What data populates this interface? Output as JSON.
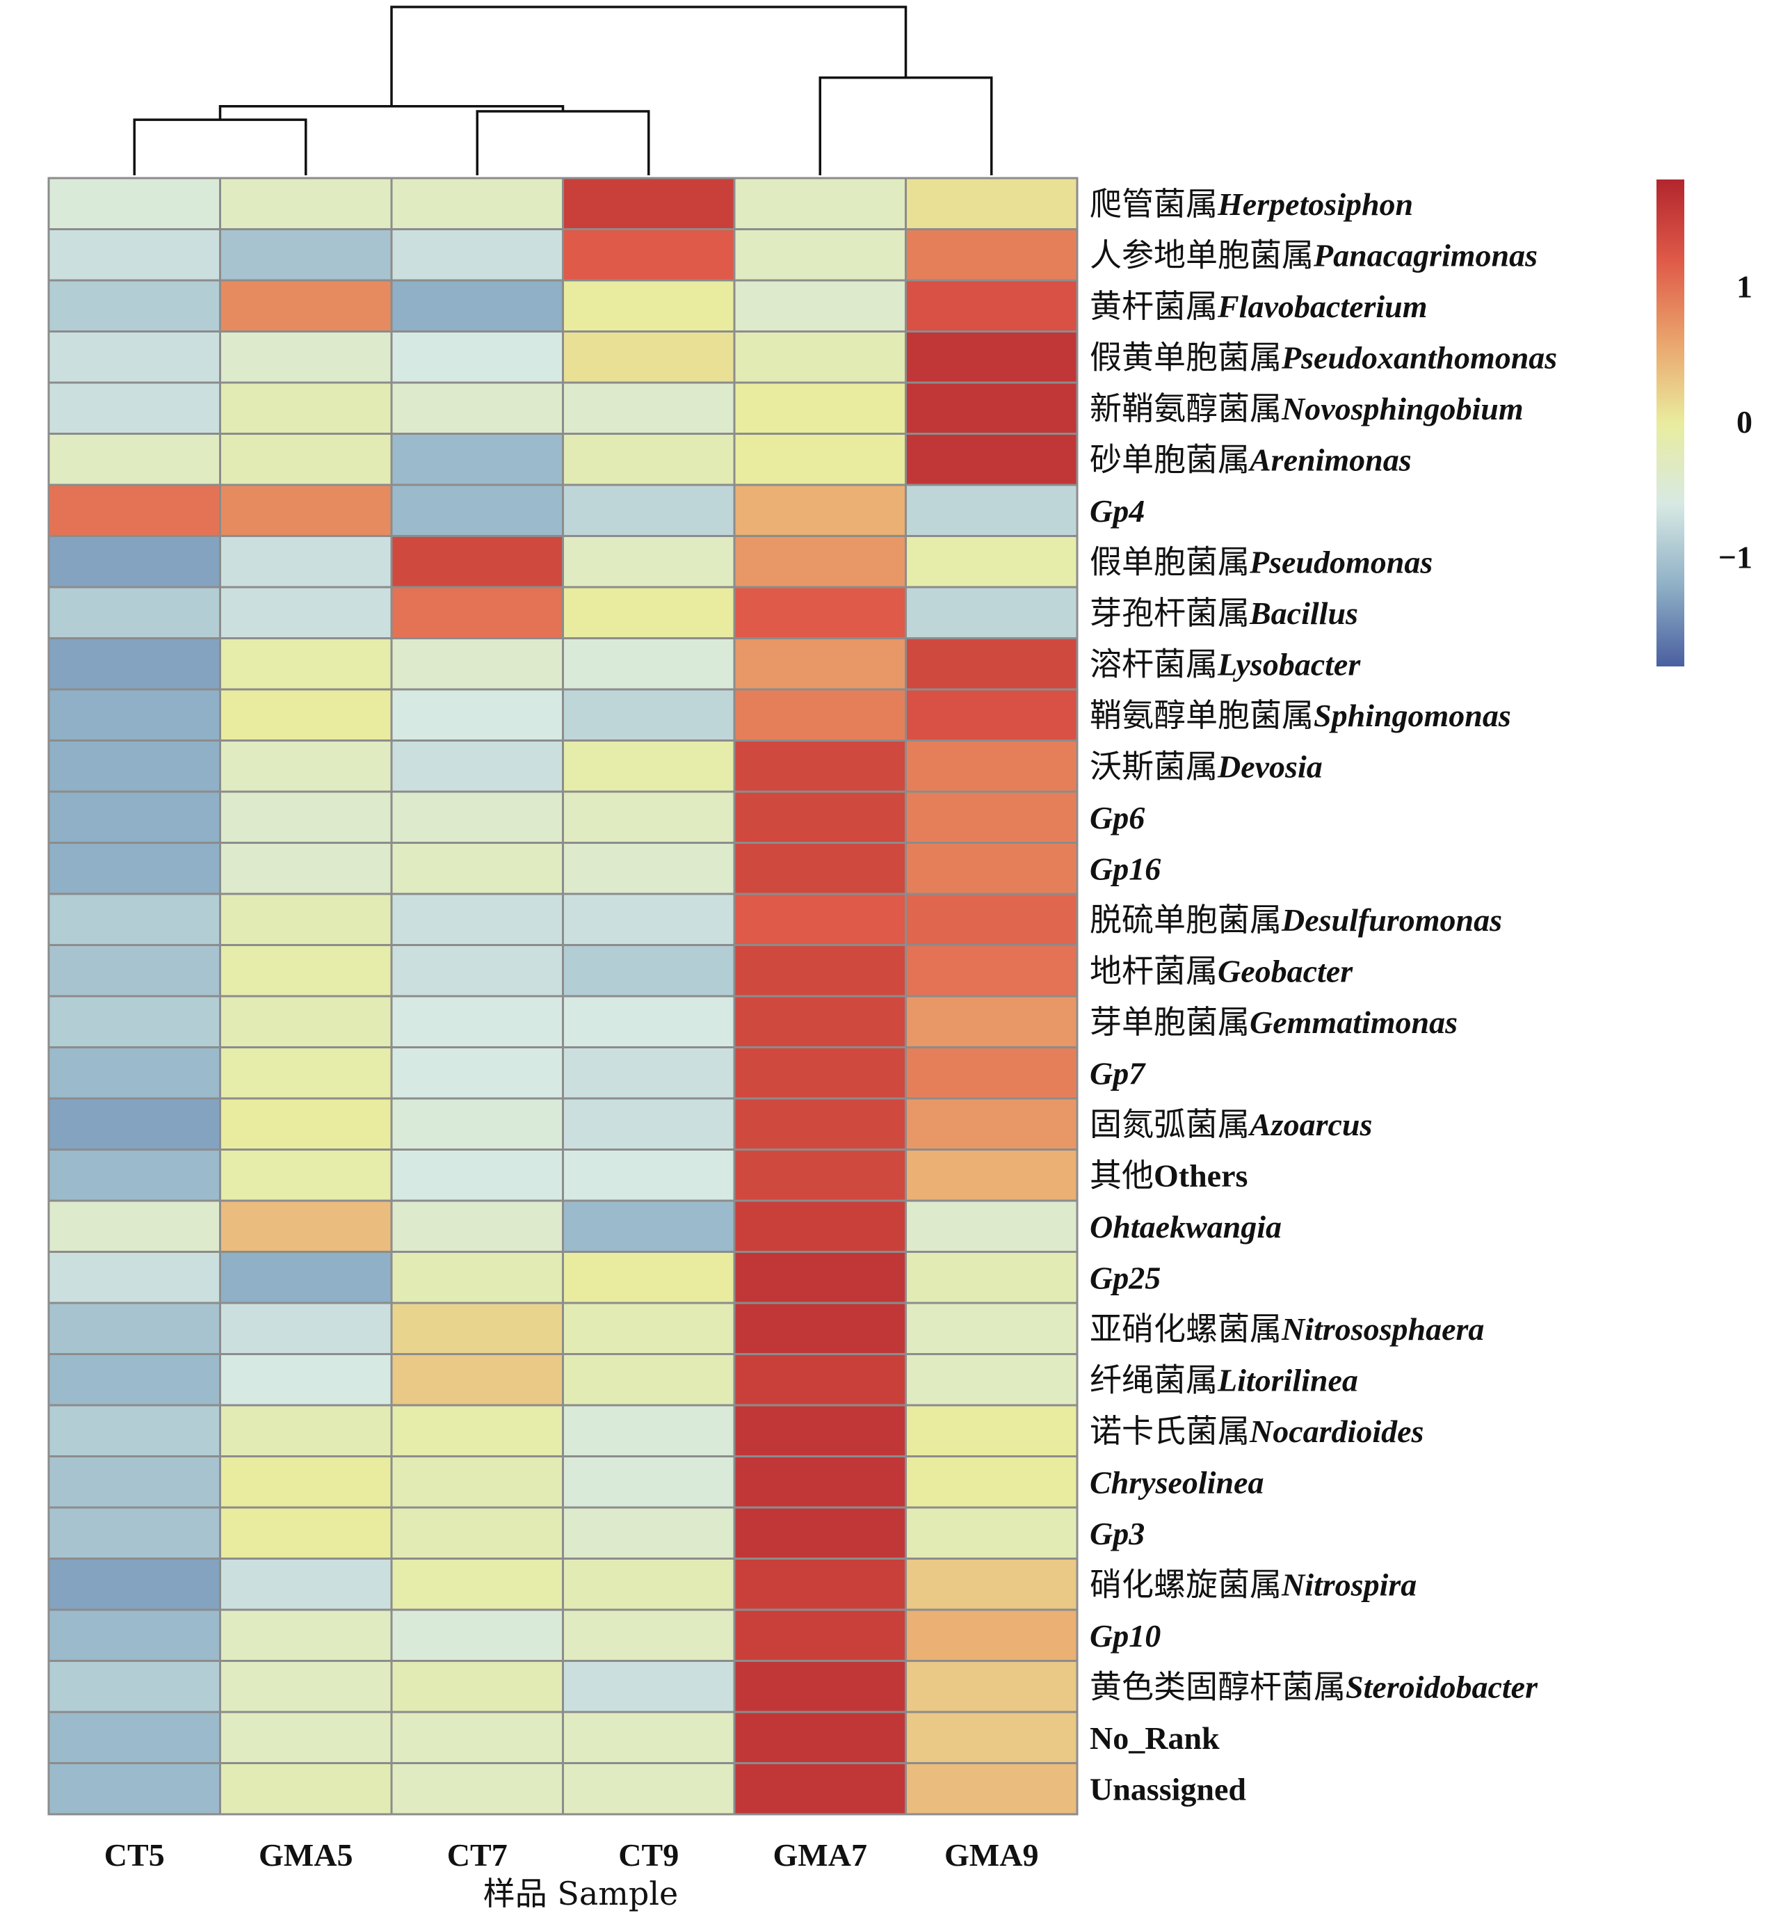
{
  "chart_data": {
    "type": "heatmap",
    "title": "",
    "xlabel": "样品 Sample",
    "columns": [
      "CT5",
      "GMA5",
      "CT7",
      "CT9",
      "GMA7",
      "GMA9"
    ],
    "rows": [
      {
        "cn": "爬管菌属",
        "la": "Herpetosiphon",
        "values": [
          -0.5,
          -0.3,
          -0.3,
          1.5,
          -0.3,
          0.1
        ]
      },
      {
        "cn": "人参地单胞菌属",
        "la": "Panacagrimonas",
        "values": [
          -0.7,
          -1.0,
          -0.7,
          1.2,
          -0.3,
          0.9
        ]
      },
      {
        "cn": "黄杆菌属",
        "la": "Flavobacterium",
        "values": [
          -0.9,
          0.8,
          -1.2,
          0.0,
          -0.4,
          1.3
        ]
      },
      {
        "cn": "假黄单胞菌属",
        "la": "Pseudoxanthomonas",
        "values": [
          -0.7,
          -0.4,
          -0.6,
          0.1,
          -0.2,
          1.6
        ]
      },
      {
        "cn": "新鞘氨醇菌属",
        "la": "Novosphingobium",
        "values": [
          -0.7,
          -0.2,
          -0.4,
          -0.4,
          0.0,
          1.6
        ]
      },
      {
        "cn": "砂单胞菌属",
        "la": "Arenimonas",
        "values": [
          -0.3,
          -0.2,
          -1.1,
          -0.2,
          0.0,
          1.6
        ]
      },
      {
        "cn": "",
        "la": "Gp4",
        "values": [
          1.0,
          0.8,
          -1.1,
          -0.8,
          0.5,
          -0.8
        ]
      },
      {
        "cn": "假单胞菌属",
        "la": "Pseudomonas",
        "values": [
          -1.3,
          -0.7,
          1.4,
          -0.3,
          0.7,
          -0.1
        ]
      },
      {
        "cn": "芽孢杆菌属",
        "la": "Bacillus",
        "values": [
          -0.9,
          -0.7,
          1.0,
          0.0,
          1.2,
          -0.8
        ]
      },
      {
        "cn": "溶杆菌属",
        "la": "Lysobacter",
        "values": [
          -1.3,
          -0.1,
          -0.4,
          -0.5,
          0.7,
          1.4
        ]
      },
      {
        "cn": "鞘氨醇单胞菌属",
        "la": "Sphingomonas",
        "values": [
          -1.2,
          0.0,
          -0.6,
          -0.8,
          0.9,
          1.3
        ]
      },
      {
        "cn": "沃斯菌属",
        "la": "Devosia",
        "values": [
          -1.2,
          -0.3,
          -0.7,
          -0.1,
          1.4,
          0.9
        ]
      },
      {
        "cn": "",
        "la": "Gp6",
        "values": [
          -1.2,
          -0.4,
          -0.4,
          -0.3,
          1.4,
          0.9
        ]
      },
      {
        "cn": "",
        "la": "Gp16",
        "values": [
          -1.2,
          -0.4,
          -0.3,
          -0.4,
          1.4,
          0.9
        ]
      },
      {
        "cn": "脱硫单胞菌属",
        "la": "Desulfuromonas",
        "values": [
          -0.9,
          -0.2,
          -0.7,
          -0.7,
          1.2,
          1.1
        ]
      },
      {
        "cn": "地杆菌属",
        "la": "Geobacter",
        "values": [
          -1.0,
          -0.1,
          -0.7,
          -0.9,
          1.4,
          1.0
        ]
      },
      {
        "cn": "芽单胞菌属",
        "la": "Gemmatimonas",
        "values": [
          -0.9,
          -0.2,
          -0.6,
          -0.6,
          1.4,
          0.7
        ]
      },
      {
        "cn": "",
        "la": "Gp7",
        "values": [
          -1.1,
          -0.1,
          -0.6,
          -0.7,
          1.4,
          0.9
        ]
      },
      {
        "cn": "固氮弧菌属",
        "la": "Azoarcus",
        "values": [
          -1.3,
          0.0,
          -0.5,
          -0.7,
          1.4,
          0.7
        ]
      },
      {
        "cn": "其他",
        "la": "Others",
        "values": [
          -1.1,
          -0.1,
          -0.6,
          -0.6,
          1.4,
          0.5
        ]
      },
      {
        "cn": "",
        "la": "Ohtaekwangia",
        "values": [
          -0.4,
          0.4,
          -0.4,
          -1.1,
          1.5,
          -0.4
        ]
      },
      {
        "cn": "",
        "la": "Gp25",
        "values": [
          -0.7,
          -1.2,
          -0.2,
          0.0,
          1.6,
          -0.2
        ]
      },
      {
        "cn": "亚硝化螺菌属",
        "la": "Nitrososphaera",
        "values": [
          -1.0,
          -0.7,
          0.2,
          -0.2,
          1.6,
          -0.3
        ]
      },
      {
        "cn": "纤绳菌属",
        "la": "Litorilinea",
        "values": [
          -1.1,
          -0.6,
          0.3,
          -0.2,
          1.5,
          -0.3
        ]
      },
      {
        "cn": "诺卡氏菌属",
        "la": "Nocardioides",
        "values": [
          -0.9,
          -0.2,
          -0.1,
          -0.5,
          1.6,
          0.0
        ]
      },
      {
        "cn": "",
        "la": "Chryseolinea",
        "values": [
          -1.0,
          0.0,
          -0.2,
          -0.5,
          1.6,
          0.0
        ]
      },
      {
        "cn": "",
        "la": "Gp3",
        "values": [
          -1.0,
          0.0,
          -0.2,
          -0.4,
          1.6,
          -0.2
        ]
      },
      {
        "cn": "硝化螺旋菌属",
        "la": "Nitrospira",
        "values": [
          -1.3,
          -0.7,
          -0.1,
          -0.2,
          1.5,
          0.3
        ]
      },
      {
        "cn": "",
        "la": "Gp10",
        "values": [
          -1.1,
          -0.3,
          -0.5,
          -0.3,
          1.5,
          0.5
        ]
      },
      {
        "cn": "黄色类固醇杆菌属",
        "la": "Steroidobacter",
        "values": [
          -0.9,
          -0.3,
          -0.2,
          -0.7,
          1.6,
          0.3
        ]
      },
      {
        "cn": "",
        "la": "No_Rank",
        "values": [
          -1.1,
          -0.3,
          -0.3,
          -0.3,
          1.6,
          0.3
        ]
      },
      {
        "cn": "",
        "la": "Unassigned",
        "values": [
          -1.1,
          -0.2,
          -0.3,
          -0.3,
          1.6,
          0.4
        ]
      }
    ],
    "plain_labels": [
      "Others",
      "No_Rank",
      "Unassigned"
    ],
    "color_scale": {
      "min": -1.8,
      "max": 1.8,
      "stops": [
        {
          "v": -1.8,
          "color": "#4a5fa0"
        },
        {
          "v": -1.2,
          "color": "#8fb0c6"
        },
        {
          "v": -0.6,
          "color": "#d7e9e3"
        },
        {
          "v": 0.0,
          "color": "#e9ec9e"
        },
        {
          "v": 0.6,
          "color": "#eaa46c"
        },
        {
          "v": 1.2,
          "color": "#df5a48"
        },
        {
          "v": 1.8,
          "color": "#b2262e"
        }
      ],
      "ticks": [
        1,
        0,
        -1
      ],
      "tick_labels": [
        "1",
        "0",
        "−1"
      ]
    },
    "dendrogram": {
      "leaf_order": [
        "CT5",
        "GMA5",
        "CT7",
        "CT9",
        "GMA7",
        "GMA9"
      ],
      "merges": [
        {
          "a": "CT5",
          "b": "GMA5",
          "height": 0.33
        },
        {
          "a": "CT7",
          "b": "CT9",
          "height": 0.38
        },
        {
          "a": "CT5+GMA5",
          "b": "CT7+CT9",
          "height": 0.41
        },
        {
          "a": "GMA7",
          "b": "GMA9",
          "height": 0.58
        },
        {
          "a": "CT5+GMA5+CT7+CT9",
          "b": "GMA7+GMA9",
          "height": 1.0
        }
      ]
    }
  }
}
